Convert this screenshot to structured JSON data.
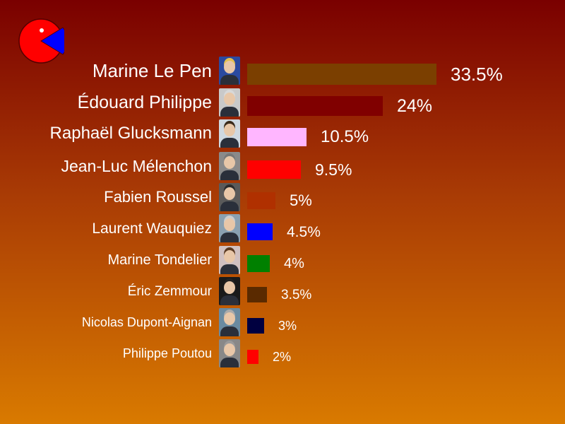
{
  "colors": {
    "logo_fill": "#ff0000",
    "logo_wedge": "#0000ff"
  },
  "chart_data": {
    "type": "bar",
    "orientation": "horizontal",
    "title": "",
    "xlabel": "",
    "ylabel": "",
    "xlim": [
      0,
      33.5
    ],
    "categories": [
      "Marine Le Pen",
      "Édouard Philippe",
      "Raphaël Glucksmann",
      "Jean-Luc Mélenchon",
      "Fabien Roussel",
      "Laurent Wauquiez",
      "Marine Tondelier",
      "Éric Zemmour",
      "Nicolas Dupont-Aignan",
      "Philippe Poutou"
    ],
    "values": [
      33.5,
      24,
      10.5,
      9.5,
      5,
      4.5,
      4,
      3.5,
      3,
      2
    ],
    "value_labels": [
      "33.5%",
      "24%",
      "10.5%",
      "9.5%",
      "5%",
      "4.5%",
      "4%",
      "3.5%",
      "3%",
      "2%"
    ],
    "bar_colors": [
      "#7b3f00",
      "#800000",
      "#ffb6ff",
      "#ff0000",
      "#b03000",
      "#0000ff",
      "#008000",
      "#5a2a00",
      "#000040",
      "#ff0000"
    ],
    "photo_icons": [
      "marine-le-pen-portrait",
      "edouard-philippe-portrait",
      "raphael-glucksmann-portrait",
      "jean-luc-melenchon-portrait",
      "fabien-roussel-portrait",
      "laurent-wauquiez-portrait",
      "marine-tondelier-portrait",
      "eric-zemmour-portrait",
      "nicolas-dupont-aignan-portrait",
      "philippe-poutou-portrait"
    ],
    "grid": false,
    "legend": "none"
  }
}
